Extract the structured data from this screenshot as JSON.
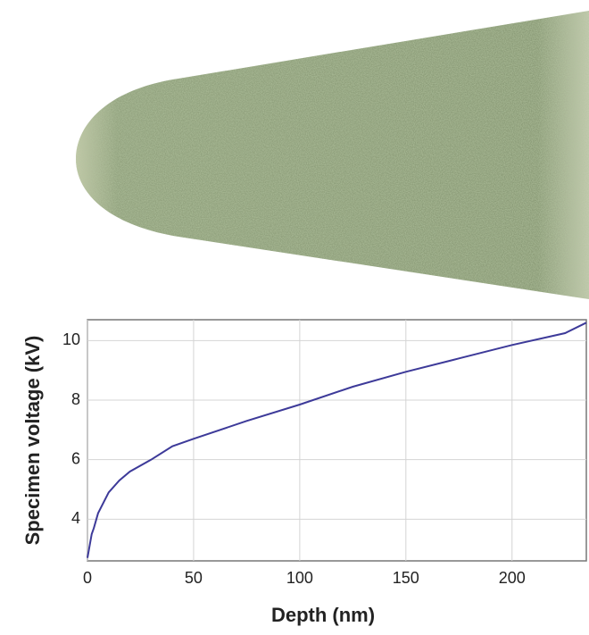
{
  "chart_data": {
    "type": "line",
    "x_label": "Depth (nm)",
    "y_label": "Specimen voltage (kV)",
    "x": [
      0,
      2,
      3,
      5,
      10,
      15,
      20,
      30,
      40,
      50,
      75,
      100,
      125,
      150,
      175,
      200,
      225,
      235
    ],
    "series": [
      {
        "color": "#3d3a99",
        "values": [
          2.7,
          3.5,
          3.7,
          4.2,
          4.9,
          5.3,
          5.6,
          6.0,
          6.45,
          6.7,
          7.3,
          7.85,
          8.45,
          8.95,
          9.4,
          9.85,
          10.25,
          10.6
        ]
      }
    ],
    "xlim": [
      0,
      235
    ],
    "ylim": [
      2.6,
      10.7
    ],
    "xticks": [
      0,
      50,
      100,
      150,
      200
    ],
    "yticks": [
      4,
      6,
      8,
      10
    ],
    "grid": true
  }
}
